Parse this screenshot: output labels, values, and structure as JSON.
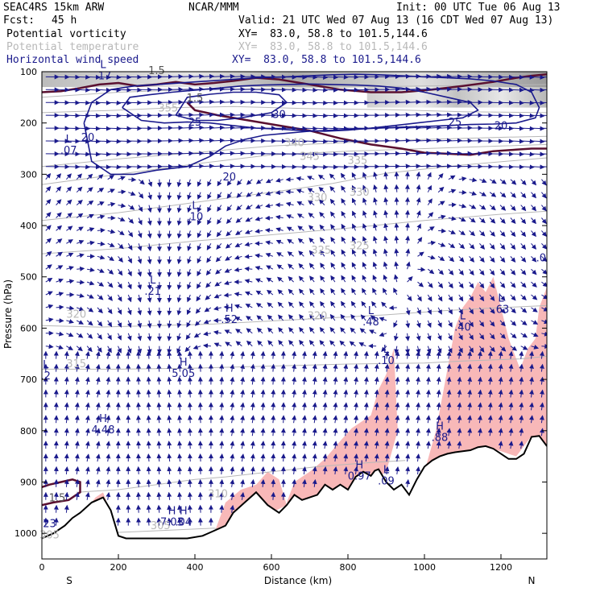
{
  "header": {
    "model": "SEAC4RS 15km ARW",
    "org": "NCAR/MMM",
    "init": "Init: 00 UTC Tue 06 Aug 13",
    "fcst_label": "Fcst:",
    "fcst_value": "45 h",
    "valid": "Valid: 21 UTC Wed 07 Aug 13 (16 CDT Wed 07 Aug 13)",
    "fields": [
      {
        "name": "Potential vorticity",
        "xy": "XY=  83.0, 58.8 to 101.5,144.6",
        "color": "#000000"
      },
      {
        "name": "Potential temperature",
        "xy": "XY=  83.0, 58.8 to 101.5,144.6",
        "color": "#b8b8b8"
      },
      {
        "name": "Horizontal wind speed",
        "xy": "XY=  83.0, 58.8 to 101.5,144.6",
        "color": "#1a1a8c"
      }
    ]
  },
  "chart_data": {
    "type": "cross-section",
    "xlabel": "Distance (km)",
    "ylabel": "Pressure (hPa)",
    "xlim": [
      0,
      1320
    ],
    "ylim": [
      1050,
      100
    ],
    "x_ticks": [
      0,
      200,
      400,
      600,
      800,
      1000,
      1200
    ],
    "y_ticks": [
      100,
      200,
      300,
      400,
      500,
      600,
      700,
      800,
      900,
      1000
    ],
    "x_end_labels": {
      "left": "S",
      "right": "N"
    },
    "colors": {
      "terrain": "#000000",
      "wind_contour": "#1a1a8c",
      "theta_contour": "#b8b8b8",
      "pv_contour": "#5a1030",
      "humidity_fill": "#f8b8b8",
      "arrows": "#1a1a8c"
    },
    "terrain": {
      "x": [
        0,
        30,
        60,
        80,
        100,
        130,
        160,
        180,
        200,
        220,
        260,
        300,
        340,
        380,
        420,
        450,
        480,
        500,
        530,
        560,
        590,
        620,
        640,
        660,
        680,
        700,
        720,
        740,
        760,
        780,
        800,
        820,
        840,
        860,
        870,
        880,
        900,
        920,
        940,
        960,
        980,
        1000,
        1020,
        1040,
        1060,
        1080,
        1100,
        1120,
        1140,
        1160,
        1180,
        1200,
        1220,
        1240,
        1260,
        1280,
        1300,
        1320
      ],
      "p": [
        1010,
        1000,
        985,
        970,
        960,
        940,
        930,
        955,
        1005,
        1010,
        1010,
        1010,
        1010,
        1010,
        1005,
        995,
        985,
        960,
        940,
        920,
        945,
        960,
        945,
        925,
        935,
        930,
        925,
        905,
        915,
        905,
        915,
        890,
        880,
        888,
        878,
        875,
        900,
        915,
        905,
        925,
        895,
        870,
        858,
        850,
        845,
        842,
        840,
        838,
        832,
        830,
        835,
        845,
        855,
        855,
        845,
        812,
        810,
        830
      ]
    },
    "theta_contours": [
      {
        "label": "305",
        "x": [
          140,
          300,
          450,
          500
        ],
        "p": [
          1000,
          995,
          990,
          1000
        ]
      },
      {
        "label": "310",
        "x": [
          90,
          200,
          300,
          400,
          480,
          600,
          720,
          860,
          950
        ],
        "p": [
          920,
          915,
          905,
          895,
          890,
          880,
          870,
          862,
          858
        ]
      },
      {
        "label": "315",
        "x": [
          0,
          200,
          400,
          600,
          800,
          1000,
          1100,
          1250,
          1320
        ],
        "p": [
          680,
          680,
          678,
          674,
          670,
          668,
          664,
          660,
          655
        ]
      },
      {
        "label": "320",
        "x": [
          0,
          150,
          300,
          450,
          600,
          750,
          900,
          1050,
          1200,
          1320
        ],
        "p": [
          595,
          598,
          595,
          592,
          586,
          580,
          574,
          566,
          560,
          556
        ]
      },
      {
        "label": "325",
        "x": [
          0,
          200,
          400,
          600,
          800,
          1000,
          1200,
          1320
        ],
        "p": [
          455,
          445,
          430,
          418,
          405,
          390,
          378,
          372
        ]
      },
      {
        "label": "330",
        "x": [
          0,
          200,
          400,
          600,
          760,
          900,
          1100,
          1320
        ],
        "p": [
          390,
          375,
          355,
          335,
          318,
          298,
          282,
          268
        ]
      },
      {
        "label": "340",
        "x": [
          0,
          200,
          400,
          600,
          800,
          1000,
          1200,
          1320
        ],
        "p": [
          320,
          300,
          280,
          262,
          255,
          250,
          245,
          242
        ]
      },
      {
        "label": "345",
        "x": [
          0,
          200,
          400,
          600,
          800,
          1000,
          1200,
          1320
        ],
        "p": [
          285,
          270,
          258,
          245,
          238,
          232,
          228,
          226
        ]
      },
      {
        "label": "355",
        "x": [
          0,
          200,
          350,
          500,
          700,
          900,
          1100,
          1320
        ],
        "p": [
          180,
          175,
          170,
          168,
          172,
          174,
          178,
          180
        ]
      },
      {
        "label": "360",
        "x": [
          0,
          200,
          400,
          600,
          800,
          1000,
          1200,
          1320
        ],
        "p": [
          150,
          140,
          135,
          133,
          130,
          128,
          126,
          125
        ]
      }
    ],
    "wind_contours": [
      {
        "label": "20",
        "x": [
          110,
          130,
          180,
          240,
          300,
          380,
          440,
          480,
          530,
          580,
          640,
          700,
          760,
          820,
          880,
          940,
          1000,
          1060,
          1120,
          1180,
          1240,
          1290,
          1300,
          1280,
          1240,
          1180,
          1120,
          1060,
          1000,
          940,
          880,
          820,
          760,
          700,
          640,
          560,
          480,
          400,
          320,
          240,
          180,
          130,
          110
        ],
        "p": [
          200,
          275,
          300,
          300,
          292,
          285,
          265,
          245,
          232,
          224,
          220,
          216,
          214,
          212,
          210,
          208,
          207,
          205,
          203,
          202,
          200,
          190,
          170,
          140,
          125,
          118,
          114,
          112,
          110,
          108,
          106,
          105,
          106,
          108,
          110,
          112,
          116,
          120,
          124,
          128,
          135,
          160,
          200
        ]
      },
      {
        "label": "25",
        "x": [
          210,
          260,
          320,
          380,
          440,
          500,
          560,
          620,
          680,
          740,
          800,
          860,
          920,
          980,
          1040,
          1100,
          1140,
          1120,
          1060,
          1000,
          940,
          880,
          820,
          760,
          700,
          640,
          580,
          520,
          460,
          400,
          340,
          280,
          230,
          210
        ],
        "p": [
          170,
          195,
          200,
          198,
          200,
          205,
          210,
          212,
          215,
          216,
          214,
          210,
          205,
          200,
          195,
          190,
          175,
          160,
          150,
          140,
          132,
          128,
          126,
          125,
          124,
          125,
          126,
          128,
          132,
          136,
          140,
          145,
          150,
          170
        ]
      },
      {
        "label": "30",
        "x": [
          350,
          400,
          460,
          520,
          600,
          640,
          620,
          560,
          500,
          440,
          380,
          350
        ],
        "p": [
          185,
          195,
          195,
          190,
          180,
          160,
          145,
          140,
          140,
          144,
          150,
          185
        ]
      }
    ],
    "pv_contours": [
      {
        "label": "1.5",
        "x": [
          0,
          50,
          100,
          150,
          200,
          250,
          300,
          350,
          400,
          450,
          500,
          560,
          620,
          700,
          780,
          860,
          940,
          1020,
          1100,
          1180,
          1240,
          1280,
          1320
        ],
        "p": [
          140,
          138,
          132,
          125,
          122,
          128,
          125,
          120,
          125,
          122,
          118,
          112,
          115,
          125,
          135,
          140,
          140,
          135,
          128,
          120,
          112,
          108,
          105
        ]
      },
      {
        "label": "1.5",
        "x": [
          380,
          400,
          460,
          540,
          620,
          700,
          780,
          860,
          940,
          1000,
          1060,
          1120,
          1180,
          1240,
          1280,
          1320
        ],
        "p": [
          160,
          175,
          185,
          195,
          205,
          215,
          230,
          242,
          250,
          258,
          260,
          262,
          255,
          252,
          250,
          250
        ]
      },
      {
        "label": "1.5",
        "x": [
          0,
          30,
          70,
          100,
          100,
          80,
          50,
          20,
          0
        ],
        "p": [
          945,
          940,
          935,
          920,
          900,
          895,
          900,
          905,
          910
        ]
      }
    ],
    "humidity_regions": [
      {
        "x": [
          40,
          100,
          140,
          160,
          200,
          140,
          80,
          40
        ],
        "p": [
          1000,
          970,
          930,
          920,
          1000,
          1000,
          1002,
          1000
        ]
      },
      {
        "x": [
          450,
          480,
          520,
          560,
          590,
          620,
          640,
          600,
          560,
          520,
          480,
          450
        ],
        "p": [
          1000,
          940,
          915,
          905,
          880,
          895,
          945,
          960,
          945,
          960,
          985,
          1000
        ]
      },
      {
        "x": [
          640,
          660,
          700,
          740,
          780,
          810,
          840,
          860,
          880,
          900,
          920,
          930,
          900,
          860,
          820,
          780,
          740,
          700,
          660,
          640
        ],
        "p": [
          940,
          900,
          880,
          855,
          820,
          795,
          780,
          770,
          720,
          690,
          640,
          800,
          880,
          900,
          920,
          910,
          925,
          935,
          940,
          940
        ]
      },
      {
        "x": [
          1000,
          1030,
          1060,
          1080,
          1100,
          1120,
          1140,
          1160,
          1180,
          1200,
          1220,
          1250,
          1270,
          1290,
          1300,
          1320,
          1320,
          1280,
          1240,
          1200,
          1160,
          1120,
          1080,
          1040,
          1000
        ],
        "p": [
          880,
          800,
          680,
          600,
          560,
          540,
          510,
          530,
          500,
          560,
          620,
          680,
          640,
          620,
          560,
          520,
          830,
          810,
          850,
          840,
          832,
          838,
          842,
          855,
          880
        ]
      }
    ],
    "hl_labels": [
      {
        "kind": "L",
        "value": ".17",
        "x": 160,
        "p": 115
      },
      {
        "kind": "L",
        "value": ".07",
        "x": 70,
        "p": 260
      },
      {
        "kind": "L",
        "value": ".10",
        "x": 400,
        "p": 390
      },
      {
        "kind": "L",
        "value": ".21",
        "x": 290,
        "p": 535
      },
      {
        "kind": "H",
        "value": ".52",
        "x": 490,
        "p": 590
      },
      {
        "kind": "H",
        "value": "5.05",
        "x": 370,
        "p": 695
      },
      {
        "kind": "H",
        "value": "4.48",
        "x": 160,
        "p": 805
      },
      {
        "kind": "L",
        "value": ".48",
        "x": 860,
        "p": 595
      },
      {
        "kind": "L",
        "value": ".10",
        "x": 900,
        "p": 670
      },
      {
        "kind": "L",
        "value": ".40",
        "x": 1100,
        "p": 605
      },
      {
        "kind": "L",
        "value": ".63",
        "x": 1200,
        "p": 570
      },
      {
        "kind": "N",
        "value": "-.0",
        "x": 1300,
        "p": 470
      },
      {
        "kind": "H",
        "value": ".88",
        "x": 1040,
        "p": 820
      },
      {
        "kind": "H",
        "value": "0.97",
        "x": 830,
        "p": 895
      },
      {
        "kind": "L",
        "value": ".09",
        "x": 900,
        "p": 905
      },
      {
        "kind": "H",
        "value": "7.03",
        "x": 340,
        "p": 985
      },
      {
        "kind": "H",
        "value": ".04",
        "x": 370,
        "p": 985
      },
      {
        "kind": "L",
        "value": ".2",
        "x": 10,
        "p": 700
      }
    ],
    "theta_labels": [
      {
        "text": "355",
        "x": 330,
        "p": 178
      },
      {
        "text": "345",
        "x": 700,
        "p": 272
      },
      {
        "text": "340",
        "x": 660,
        "p": 245
      },
      {
        "text": "335",
        "x": 825,
        "p": 280
      },
      {
        "text": "330",
        "x": 720,
        "p": 352
      },
      {
        "text": "330",
        "x": 830,
        "p": 342
      },
      {
        "text": "325",
        "x": 730,
        "p": 455
      },
      {
        "text": "325",
        "x": 830,
        "p": 446
      },
      {
        "text": "320",
        "x": 90,
        "p": 580
      },
      {
        "text": "320",
        "x": 720,
        "p": 583
      },
      {
        "text": "315",
        "x": 90,
        "p": 676
      },
      {
        "text": "310",
        "x": 460,
        "p": 930
      },
      {
        "text": "305",
        "x": 310,
        "p": 992
      },
      {
        "text": "305",
        "x": 20,
        "p": 1010
      }
    ],
    "wind_labels": [
      {
        "text": "20",
        "x": 120,
        "p": 235
      },
      {
        "text": "25",
        "x": 400,
        "p": 205
      },
      {
        "text": "20",
        "x": 490,
        "p": 312
      },
      {
        "text": "30",
        "x": 620,
        "p": 190
      },
      {
        "text": "25",
        "x": 1080,
        "p": 205
      },
      {
        "text": "20",
        "x": 1200,
        "p": 212
      },
      {
        "text": "23",
        "x": 20,
        "p": 988
      }
    ],
    "pv_labels": [
      {
        "text": "1.5",
        "x": 300,
        "p": 105
      },
      {
        "text": "1.5",
        "x": 400,
        "p": 158
      },
      {
        "text": "1.5",
        "x": 40,
        "p": 938
      }
    ]
  }
}
